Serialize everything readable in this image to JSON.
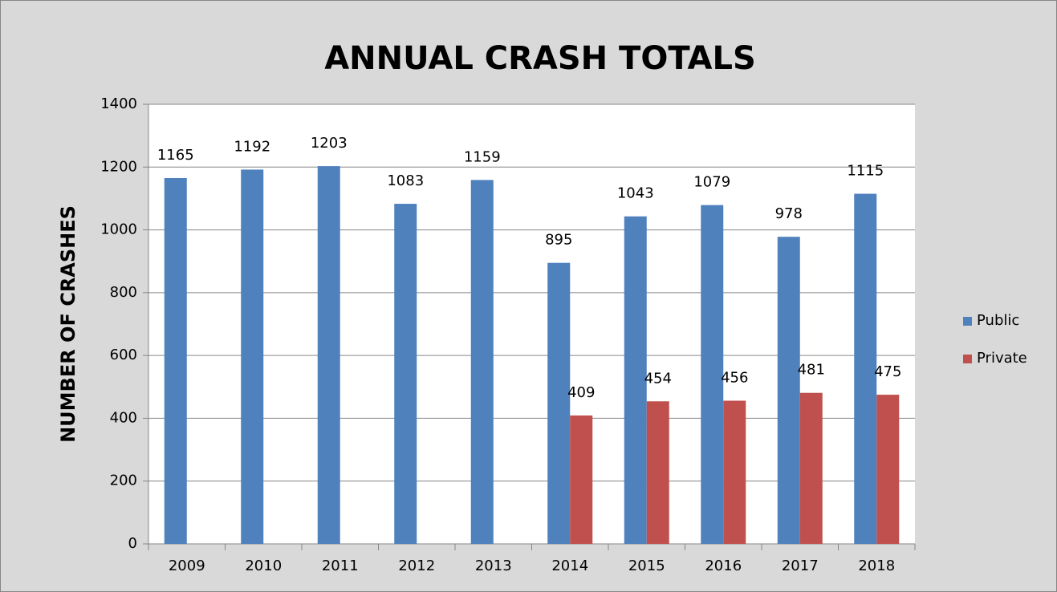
{
  "chart_data": {
    "type": "bar",
    "title": "ANNUAL CRASH TOTALS",
    "y_label": "NUMBER OF CRASHES",
    "categories": [
      "2009",
      "2010",
      "2011",
      "2012",
      "2013",
      "2014",
      "2015",
      "2016",
      "2017",
      "2018"
    ],
    "series": [
      {
        "name": "Public",
        "color": "#4f81bd",
        "values": [
          1165,
          1192,
          1203,
          1083,
          1159,
          895,
          1043,
          1079,
          978,
          1115
        ]
      },
      {
        "name": "Private",
        "color": "#c0504d",
        "values": [
          null,
          null,
          null,
          null,
          null,
          409,
          454,
          456,
          481,
          475
        ]
      }
    ],
    "ylim": [
      0,
      1400
    ],
    "yticks": [
      0,
      200,
      400,
      600,
      800,
      1000,
      1200,
      1400
    ],
    "grid": true,
    "legend": "right"
  }
}
